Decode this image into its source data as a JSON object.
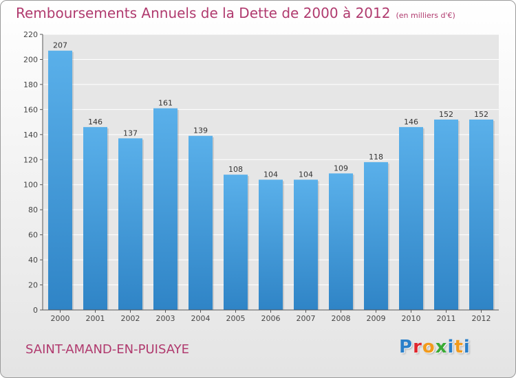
{
  "title": "Remboursements Annuels de la Dette de 2000 à 2012",
  "subtitle": "(en milliers d'€)",
  "commune": "SAINT-AMAND-EN-PUISAYE",
  "logo": {
    "text": "Proxiti",
    "letter_colors": [
      "#2a7fc9",
      "#e0262d",
      "#f29a1b",
      "#3aaa35",
      "#2a7fc9",
      "#f29a1b",
      "#2a7fc9"
    ]
  },
  "colors": {
    "title": "#b03a6e",
    "bar_top": "#5ab0ea",
    "bar_bottom": "#2f84c6",
    "grid": "#ffffff",
    "axis": "#555555"
  },
  "chart_data": {
    "type": "bar",
    "categories": [
      "2000",
      "2001",
      "2002",
      "2003",
      "2004",
      "2005",
      "2006",
      "2007",
      "2008",
      "2009",
      "2010",
      "2011",
      "2012"
    ],
    "values": [
      207,
      146,
      137,
      161,
      139,
      108,
      104,
      104,
      109,
      118,
      146,
      152,
      152
    ],
    "yticks": [
      0,
      20,
      40,
      60,
      80,
      100,
      120,
      140,
      160,
      180,
      200,
      220
    ],
    "ylim": [
      0,
      220
    ],
    "grid": true,
    "data_labels": true
  }
}
